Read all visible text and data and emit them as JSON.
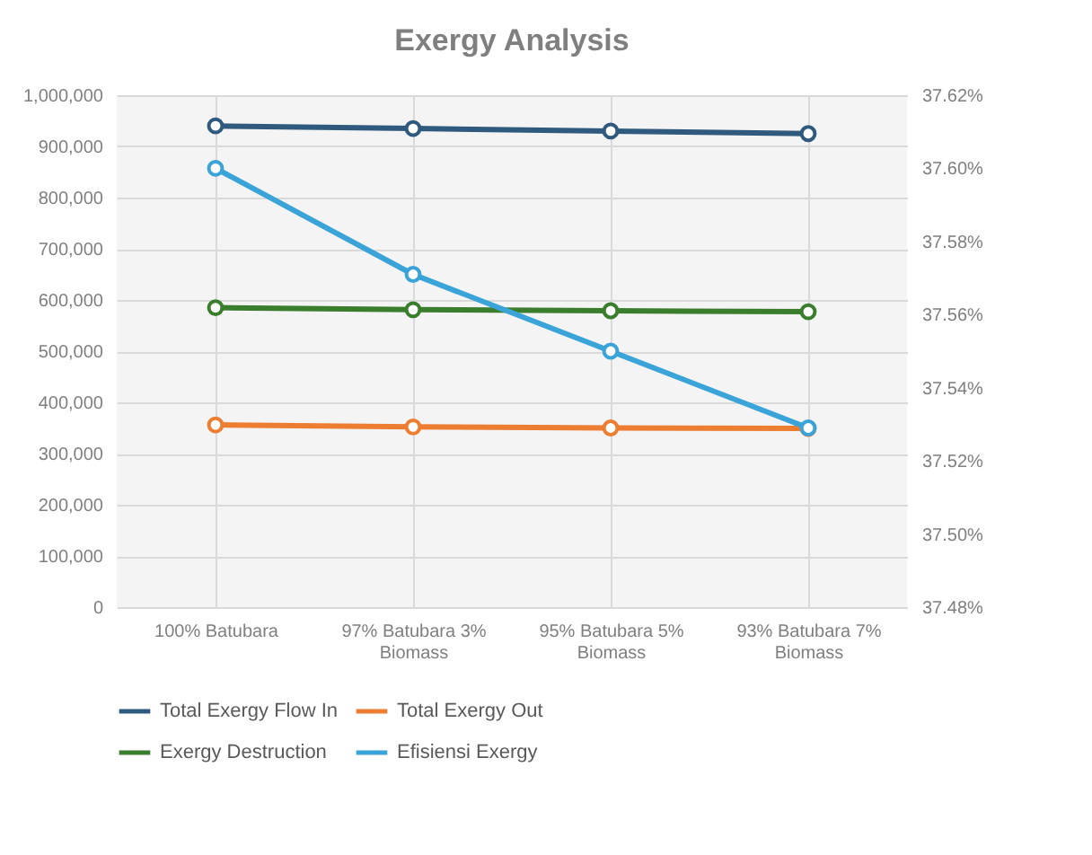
{
  "chart_data": {
    "type": "line",
    "title": "Exergy Analysis",
    "categories": [
      "100% Batubara",
      "97% Batubara 3% Biomass",
      "95% Batubara 5% Biomass",
      "93% Batubara 7% Biomass"
    ],
    "series": [
      {
        "name": "Total Exergy Flow In",
        "color": "#2f5a7e",
        "values": [
          940000,
          935000,
          930000,
          925000
        ]
      },
      {
        "name": "Total Exergy Out",
        "color": "#ed7d31",
        "values": [
          356000,
          352000,
          350000,
          349000
        ]
      },
      {
        "name": "Exergy Destruction",
        "color": "#3a7d2c",
        "values": [
          585000,
          581000,
          579000,
          577000
        ]
      },
      {
        "name": "Efisiensi Exergy",
        "color": "#3aa3d8",
        "axis": "y2",
        "values": [
          37.6,
          37.571,
          37.55,
          37.529
        ]
      }
    ],
    "ylim": [
      0,
      1000000
    ],
    "yticks": [
      0,
      {
        "value": 100000,
        "label": "100,000"
      },
      {
        "value": 200000,
        "label": "200,000"
      },
      {
        "value": 300000,
        "label": "300,000"
      },
      {
        "value": 400000,
        "label": "400,000"
      },
      {
        "value": 500000,
        "label": "500,000"
      },
      {
        "value": 600000,
        "label": "600,000"
      },
      {
        "value": 700000,
        "label": "700,000"
      },
      {
        "value": 800000,
        "label": "800,000"
      },
      {
        "value": 900000,
        "label": "900,000"
      },
      {
        "value": 1000000,
        "label": "1,000,000"
      }
    ],
    "y2lim": [
      37.48,
      37.62
    ],
    "y2ticks": [
      {
        "value": 37.48,
        "label": "37.48%"
      },
      {
        "value": 37.5,
        "label": "37.50%"
      },
      {
        "value": 37.52,
        "label": "37.52%"
      },
      {
        "value": 37.54,
        "label": "37.54%"
      },
      {
        "value": 37.56,
        "label": "37.56%"
      },
      {
        "value": 37.58,
        "label": "37.58%"
      },
      {
        "value": 37.6,
        "label": "37.60%"
      },
      {
        "value": 37.62,
        "label": "37.62%"
      }
    ],
    "grid": true,
    "legend": "bottom",
    "marker": "circle",
    "line_style": "solid"
  }
}
